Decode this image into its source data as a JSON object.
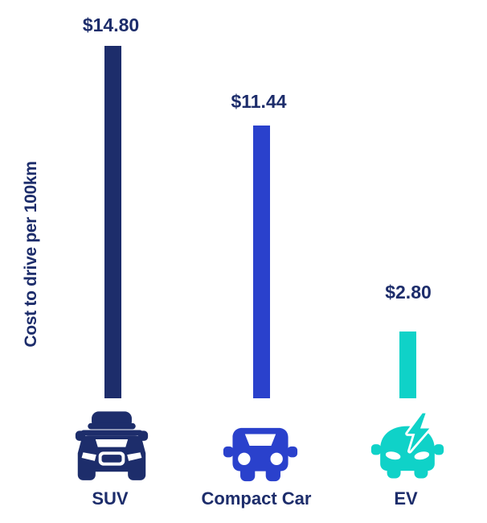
{
  "axis": {
    "y_label": "Cost to drive per 100km"
  },
  "chart_data": {
    "type": "bar",
    "categories": [
      "SUV",
      "Compact Car",
      "EV"
    ],
    "values": [
      14.8,
      11.44,
      2.8
    ],
    "value_labels": [
      "$14.80",
      "$11.44",
      "$2.80"
    ],
    "title": "",
    "xlabel": "",
    "ylabel": "Cost to drive per 100km",
    "ylim": [
      0,
      14.8
    ],
    "grid": false,
    "legend": "none",
    "bar_colors": [
      "#1d2d6b",
      "#2a41cc",
      "#0fd2c8"
    ],
    "icons": [
      "suv-car-icon",
      "compact-car-icon",
      "ev-car-icon"
    ]
  },
  "colors": {
    "navy": "#1d2d6b",
    "blue": "#2a41cc",
    "teal": "#0fd2c8",
    "background": "#ffffff"
  }
}
